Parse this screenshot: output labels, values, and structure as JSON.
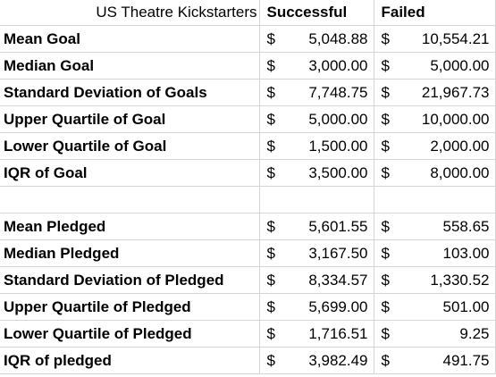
{
  "header": {
    "title": "US Theatre Kickstarters",
    "col_successful": "Successful",
    "col_failed": "Failed"
  },
  "currency_symbol": "$",
  "goal_rows": [
    {
      "label": "Mean Goal",
      "successful": "5,048.88",
      "failed": "10,554.21"
    },
    {
      "label": "Median Goal",
      "successful": "3,000.00",
      "failed": "5,000.00"
    },
    {
      "label": "Standard Deviation of Goals",
      "successful": "7,748.75",
      "failed": "21,967.73"
    },
    {
      "label": "Upper Quartile of Goal",
      "successful": "5,000.00",
      "failed": "10,000.00"
    },
    {
      "label": "Lower Quartile of Goal",
      "successful": "1,500.00",
      "failed": "2,000.00"
    },
    {
      "label": "IQR of Goal",
      "successful": "3,500.00",
      "failed": "8,000.00"
    }
  ],
  "pledged_rows": [
    {
      "label": "Mean Pledged",
      "successful": "5,601.55",
      "failed": "558.65"
    },
    {
      "label": "Median Pledged",
      "successful": "3,167.50",
      "failed": "103.00"
    },
    {
      "label": "Standard Deviation of Pledged",
      "successful": "8,334.57",
      "failed": "1,330.52"
    },
    {
      "label": "Upper Quartile of Pledged",
      "successful": "5,699.00",
      "failed": "501.00"
    },
    {
      "label": "Lower Quartile of Pledged",
      "successful": "1,716.51",
      "failed": "9.25"
    },
    {
      "label": "IQR of pledged",
      "successful": "3,982.49",
      "failed": "491.75"
    }
  ]
}
